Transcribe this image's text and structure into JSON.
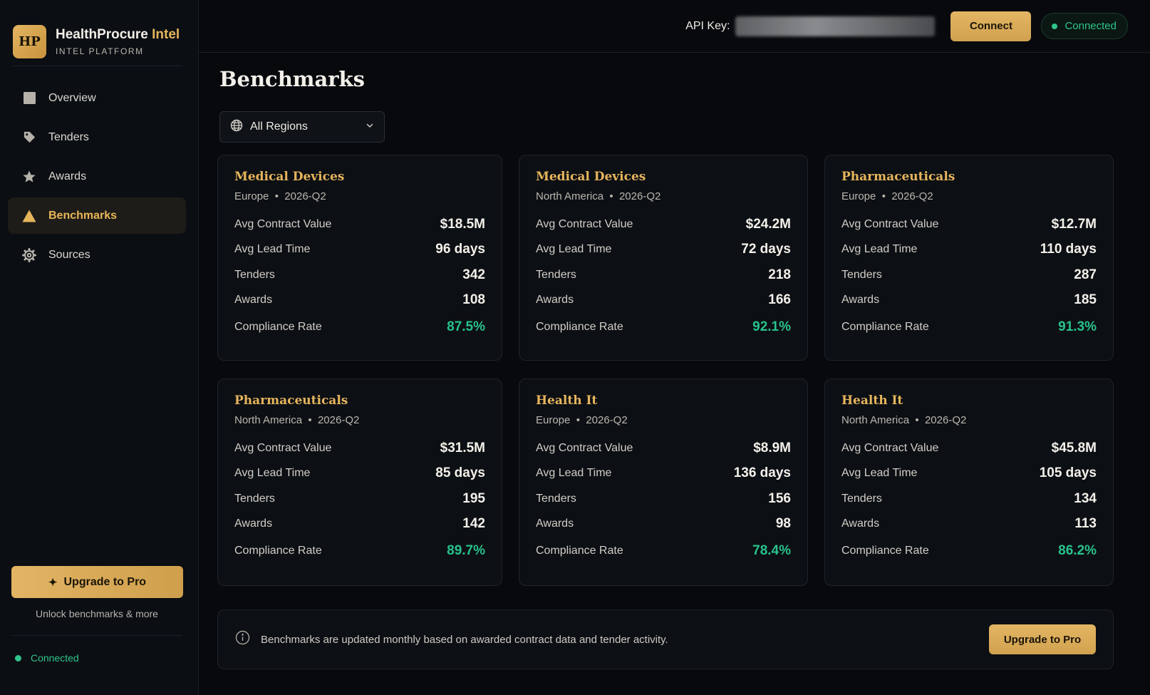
{
  "brand": {
    "logo": "HP",
    "title_main": "HealthProcure",
    "title_accent": "Intel",
    "subtitle": "INTEL PLATFORM"
  },
  "sidebar": {
    "items": [
      {
        "label": "Overview",
        "icon": "square-icon",
        "active": false
      },
      {
        "label": "Tenders",
        "icon": "tag-icon",
        "active": false
      },
      {
        "label": "Awards",
        "icon": "star-icon",
        "active": false
      },
      {
        "label": "Benchmarks",
        "icon": "triangle-icon",
        "active": true
      },
      {
        "label": "Sources",
        "icon": "gear-icon",
        "active": false
      }
    ],
    "upgrade_label": "Upgrade to Pro",
    "unlock_text": "Unlock benchmarks & more",
    "status": "Connected"
  },
  "topbar": {
    "api_label": "API Key:",
    "connect_label": "Connect",
    "status": "Connected"
  },
  "page": {
    "title": "Benchmarks",
    "region_filter": "All Regions"
  },
  "metric_labels": {
    "avg_contract_value": "Avg Contract Value",
    "avg_lead_time": "Avg Lead Time",
    "tenders": "Tenders",
    "awards": "Awards",
    "compliance_rate": "Compliance Rate"
  },
  "cards": [
    {
      "category": "Medical Devices",
      "region": "Europe",
      "period": "2026-Q2",
      "avg_contract_value": "$18.5M",
      "avg_lead_time": "96 days",
      "tenders": "342",
      "awards": "108",
      "compliance_rate": "87.5%"
    },
    {
      "category": "Medical Devices",
      "region": "North America",
      "period": "2026-Q2",
      "avg_contract_value": "$24.2M",
      "avg_lead_time": "72 days",
      "tenders": "218",
      "awards": "166",
      "compliance_rate": "92.1%"
    },
    {
      "category": "Pharmaceuticals",
      "region": "Europe",
      "period": "2026-Q2",
      "avg_contract_value": "$12.7M",
      "avg_lead_time": "110 days",
      "tenders": "287",
      "awards": "185",
      "compliance_rate": "91.3%"
    },
    {
      "category": "Pharmaceuticals",
      "region": "North America",
      "period": "2026-Q2",
      "avg_contract_value": "$31.5M",
      "avg_lead_time": "85 days",
      "tenders": "195",
      "awards": "142",
      "compliance_rate": "89.7%"
    },
    {
      "category": "Health It",
      "region": "Europe",
      "period": "2026-Q2",
      "avg_contract_value": "$8.9M",
      "avg_lead_time": "136 days",
      "tenders": "156",
      "awards": "98",
      "compliance_rate": "78.4%"
    },
    {
      "category": "Health It",
      "region": "North America",
      "period": "2026-Q2",
      "avg_contract_value": "$45.8M",
      "avg_lead_time": "105 days",
      "tenders": "134",
      "awards": "113",
      "compliance_rate": "86.2%"
    }
  ],
  "info_bar": {
    "text": "Benchmarks are updated monthly based on awarded contract data and tender activity.",
    "upgrade_label": "Upgrade to Pro"
  },
  "colors": {
    "accent": "#e6b55c",
    "success": "#2fc48b",
    "background": "#07090d"
  }
}
